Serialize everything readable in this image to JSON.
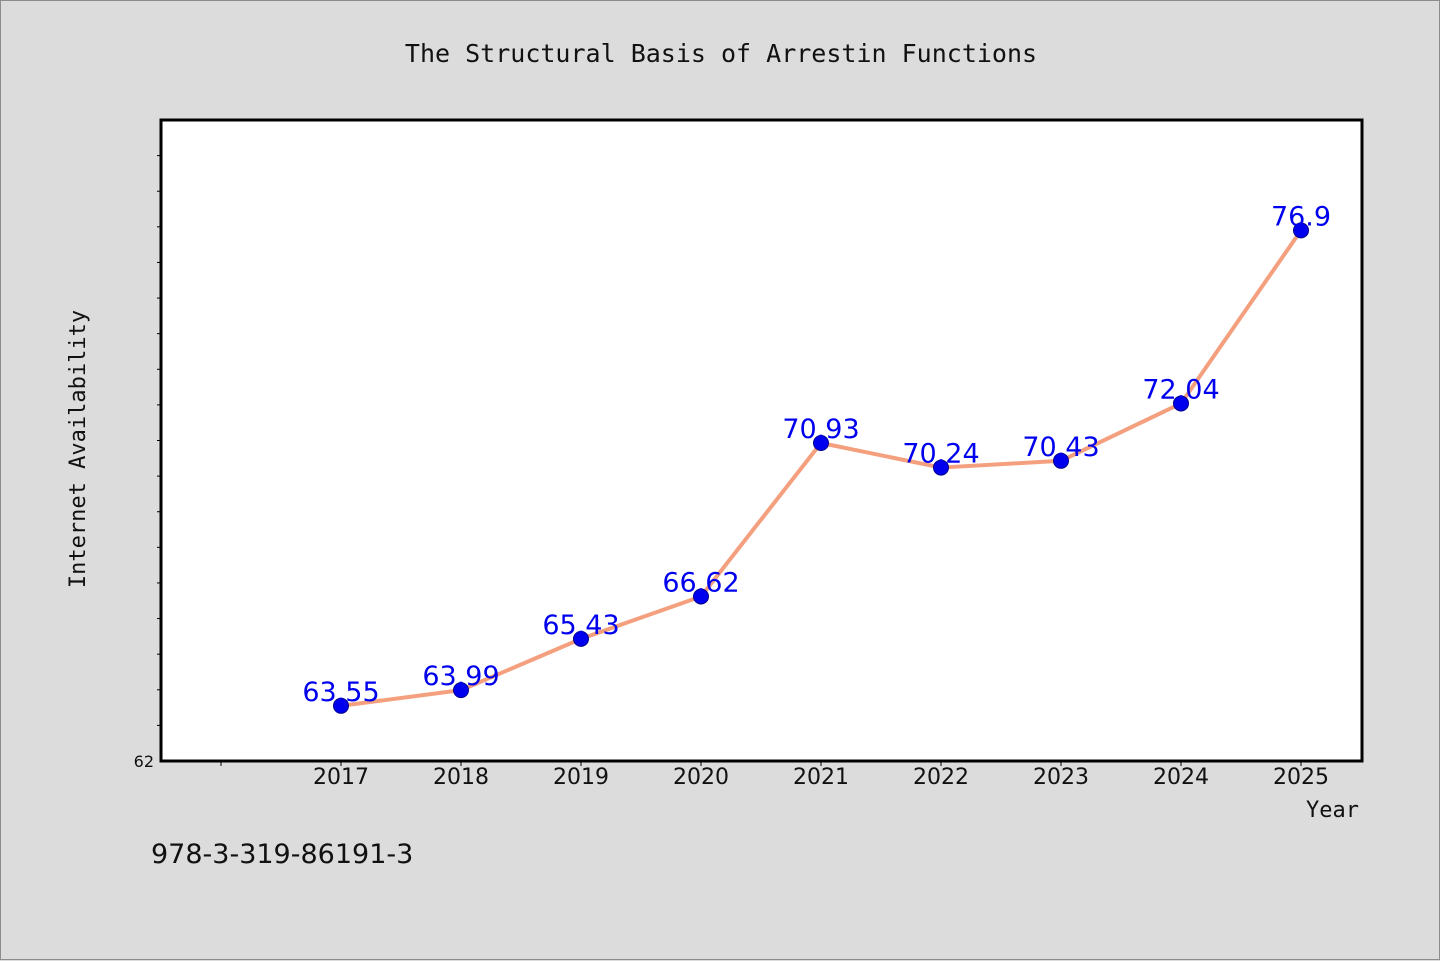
{
  "chart_data": {
    "type": "line",
    "title": "The Structural Basis of Arrestin Functions",
    "xlabel": "Year",
    "ylabel": "Internet Availability",
    "categories": [
      "2017",
      "2018",
      "2019",
      "2020",
      "2021",
      "2022",
      "2023",
      "2024",
      "2025"
    ],
    "series": [
      {
        "values": [
          63.55,
          63.99,
          65.43,
          66.62,
          70.93,
          70.24,
          70.43,
          72.04,
          76.9
        ],
        "data_labels": [
          "63.55",
          "63.99",
          "65.43",
          "66.62",
          "70.93",
          "70.24",
          "70.43",
          "72.04",
          "76.9"
        ]
      }
    ],
    "ylim": [
      62,
      80
    ],
    "y_tick_labels": [
      "62"
    ],
    "grid": false,
    "legend": "none",
    "colors": {
      "line": "#f4a07e",
      "marker": "#0000ee",
      "data_label": "#0000ee",
      "plot_background": "#ffffff",
      "page_background": "#dcdcdc"
    }
  },
  "footer": {
    "isbn": "978-3-319-86191-3"
  }
}
